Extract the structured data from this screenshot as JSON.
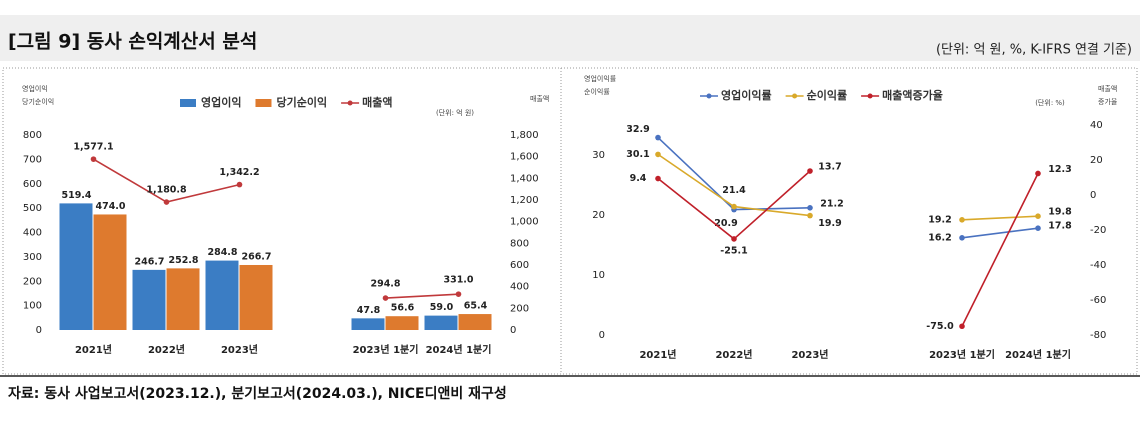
{
  "header": {
    "title": "[그림 9] 동사 손익계산서 분석",
    "unit": "(단위: 억 원, %, K-IFRS 연결 기준)"
  },
  "chart_data": [
    {
      "type": "bar",
      "y_label": [
        "영업이익",
        "당기순이익"
      ],
      "y2_label": [
        "매출액"
      ],
      "unit_note": "(단위: 억 원)",
      "categories": [
        "2021년",
        "2022년",
        "2023년",
        null,
        "2023년 1분기",
        "2024년 1분기"
      ],
      "series": [
        {
          "name": "영업이익",
          "type": "bar",
          "color": "#3b7dc4",
          "values": [
            519.4,
            246.7,
            284.8,
            null,
            47.8,
            59.0
          ],
          "value_labels": [
            "519.4",
            "246.7",
            "284.8",
            null,
            "47.8",
            "59.0"
          ]
        },
        {
          "name": "당기순이익",
          "type": "bar",
          "color": "#de7a2e",
          "values": [
            474.0,
            252.8,
            266.7,
            null,
            56.6,
            65.4
          ],
          "value_labels": [
            "474.0",
            "252.8",
            "266.7",
            null,
            "56.6",
            "65.4"
          ]
        },
        {
          "name": "매출액",
          "type": "line",
          "axis": "y2",
          "color": "#c0393b",
          "values": [
            1577.1,
            1180.8,
            1342.2,
            null,
            294.8,
            331.0
          ],
          "value_labels": [
            "1,577.1",
            "1,180.8",
            "1,342.2",
            null,
            "294.8",
            "331.0"
          ]
        }
      ],
      "ylim": [
        0,
        800
      ],
      "yticks": [
        0,
        100,
        200,
        300,
        400,
        500,
        600,
        700,
        800
      ],
      "y2lim": [
        0,
        1800
      ],
      "y2ticks": [
        0,
        200,
        400,
        600,
        800,
        {
          "value": 1000,
          "label": "1,000"
        },
        {
          "value": 1200,
          "label": "1,200"
        },
        {
          "value": 1400,
          "label": "1,400"
        },
        {
          "value": 1600,
          "label": "1,600"
        },
        {
          "value": 1800,
          "label": "1,800"
        }
      ]
    },
    {
      "type": "line",
      "y_label": [
        "영업이익률",
        "순이익률"
      ],
      "y2_label": [
        "매출액",
        "증가율"
      ],
      "unit_note": "(단위: %)",
      "categories": [
        "2021년",
        "2022년",
        "2023년",
        null,
        "2023년 1분기",
        "2024년 1분기"
      ],
      "series": [
        {
          "name": "영업이익률",
          "color": "#4a72c0",
          "values": [
            32.9,
            20.9,
            21.2,
            null,
            16.2,
            17.8
          ]
        },
        {
          "name": "순이익률",
          "color": "#d9a92a",
          "values": [
            30.1,
            21.4,
            19.9,
            null,
            19.2,
            19.8
          ]
        },
        {
          "name": "매출액증가율",
          "axis": "y2",
          "color": "#c0202a",
          "values": [
            9.4,
            -25.1,
            13.7,
            null,
            -75.0,
            12.3
          ],
          "value_labels": [
            "9.4",
            "-25.1",
            "13.7",
            null,
            "-75.0",
            "12.3"
          ]
        }
      ],
      "ylim": [
        0,
        35
      ],
      "yticks": [
        0,
        10,
        20,
        30
      ],
      "y2lim": [
        -80,
        40
      ],
      "y2ticks": [
        -80,
        -60,
        -40,
        -20,
        0,
        20,
        40
      ]
    }
  ],
  "footer": {
    "source": "자료: 동사 사업보고서(2023.12.), 분기보고서(2024.03.), NICE디앤비 재구성"
  }
}
